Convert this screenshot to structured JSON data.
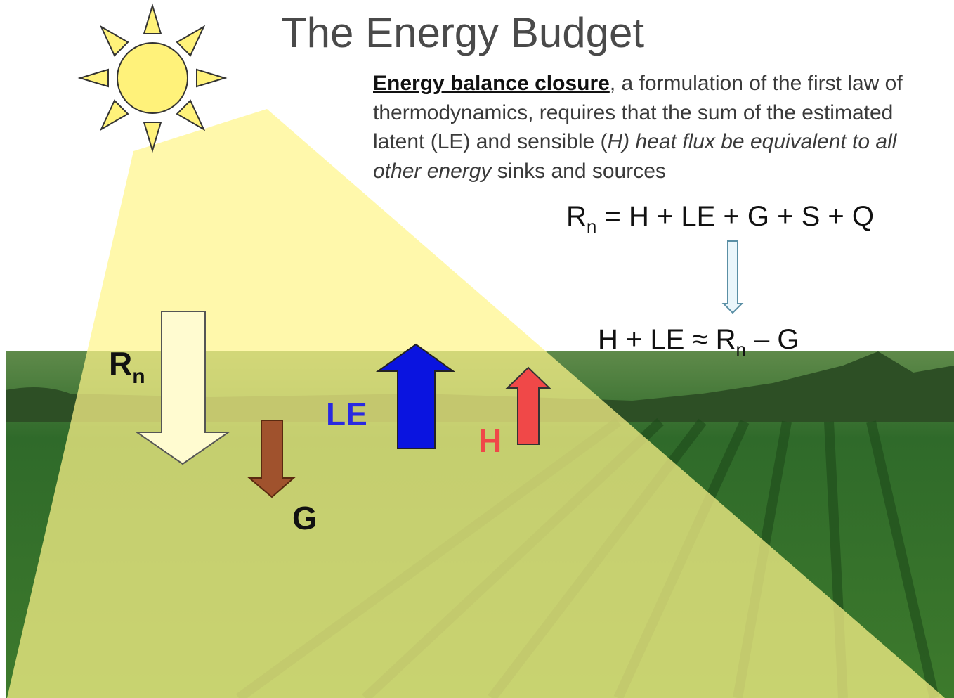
{
  "title": "The Energy Budget",
  "paragraph": {
    "parts": [
      "Energy balance closure",
      ", a formulation of the first law of thermodynamics, requires that the sum of the estimated latent (LE) and sensible (",
      "H) heat flux be equivalent to all other energy",
      " sinks and sources"
    ]
  },
  "equations": [
    {
      "parts": [
        "R",
        "n",
        " = H + LE + G + S + Q"
      ]
    },
    {
      "parts": [
        "H + LE ≈ R",
        "n",
        " – G"
      ]
    }
  ],
  "labels": {
    "rn": [
      "R",
      "n"
    ],
    "le": "LE",
    "h": "H",
    "g": "G"
  }
}
